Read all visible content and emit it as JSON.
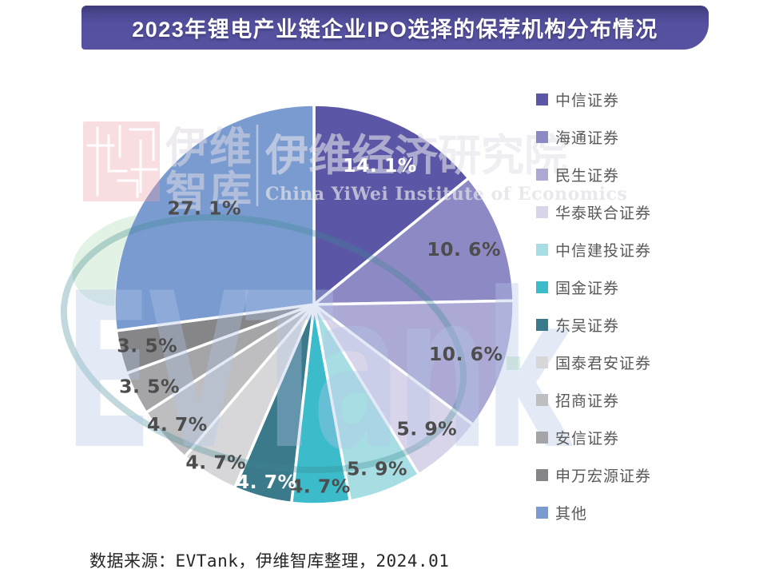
{
  "header": {
    "title": "2023年锂电产业链企业IPO选择的保荐机构分布情况"
  },
  "chart_data": {
    "type": "pie",
    "title": "2023年锂电产业链企业IPO选择的保荐机构分布情况",
    "unit": "%",
    "start_angle": "12 o'clock, clockwise",
    "legend_position": "right",
    "series": [
      {
        "name": "中信证券",
        "value": 14.1,
        "color": "#5B57A6",
        "label_color": "#FFFFFF"
      },
      {
        "name": "海通证券",
        "value": 10.6,
        "color": "#8D89C5",
        "label_color": "#4D4D4D"
      },
      {
        "name": "民生证券",
        "value": 10.6,
        "color": "#ACA9D5",
        "label_color": "#4D4D4D"
      },
      {
        "name": "华泰联合证券",
        "value": 5.9,
        "color": "#D8D4EA",
        "label_color": "#4D4D4D"
      },
      {
        "name": "中信建投证券",
        "value": 5.9,
        "color": "#A6DEE3",
        "label_color": "#4D4D4D"
      },
      {
        "name": "国金证券",
        "value": 4.7,
        "color": "#3CBCCB",
        "label_color": "#4D4D4D"
      },
      {
        "name": "东吴证券",
        "value": 4.7,
        "color": "#3B7A8B",
        "label_color": "#FFFFFF"
      },
      {
        "name": "国泰君安证券",
        "value": 4.7,
        "color": "#D7D7D9",
        "label_color": "#4D4D4D"
      },
      {
        "name": "招商证券",
        "value": 4.7,
        "color": "#BEBEC0",
        "label_color": "#4D4D4D"
      },
      {
        "name": "安信证券",
        "value": 3.5,
        "color": "#A5A5A7",
        "label_color": "#4D4D4D"
      },
      {
        "name": "申万宏源证券",
        "value": 3.5,
        "color": "#868689",
        "label_color": "#4D4D4D"
      },
      {
        "name": "其他",
        "value": 27.1,
        "color": "#7A9BD0",
        "label_color": "#4D4D4D"
      }
    ]
  },
  "watermarks": {
    "zhiku_line1": "伊维",
    "zhiku_line2": "智库",
    "institute_cn": "伊维经济研究院",
    "institute_en": "China YiWei Institute of Economics",
    "evtank": "EVTank"
  },
  "footer": {
    "source": "数据来源：EVTank，伊维智库整理，2024.01"
  }
}
